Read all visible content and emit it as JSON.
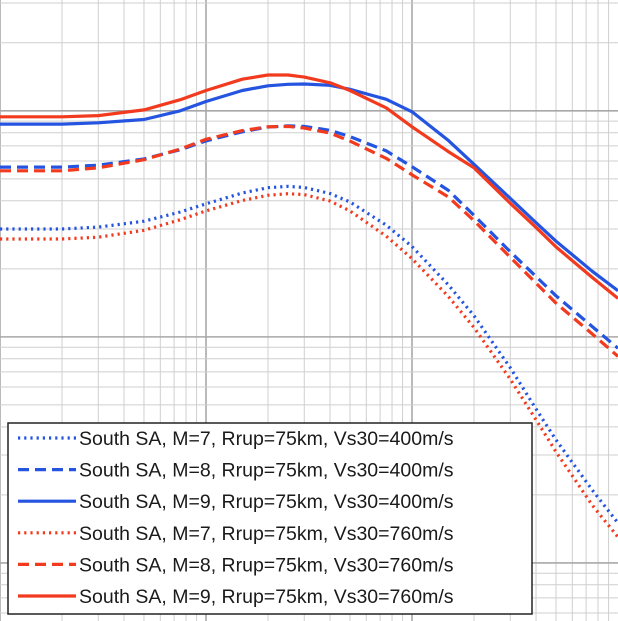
{
  "chart_data": {
    "type": "line",
    "x_scale": "log",
    "y_scale": "log",
    "grid": true,
    "legend_position": "bottom-left",
    "series": [
      {
        "name": "South SA, M=7, Rrup=75km, Vs30=400m/s",
        "color": "#2454e0",
        "style": "dotted",
        "points": [
          [
            0.01,
            0.03
          ],
          [
            0.02,
            0.03
          ],
          [
            0.03,
            0.0306
          ],
          [
            0.05,
            0.0325
          ],
          [
            0.075,
            0.0357
          ],
          [
            0.1,
            0.0388
          ],
          [
            0.15,
            0.0433
          ],
          [
            0.2,
            0.0457
          ],
          [
            0.25,
            0.0463
          ],
          [
            0.3,
            0.0458
          ],
          [
            0.4,
            0.0431
          ],
          [
            0.5,
            0.0395
          ],
          [
            0.75,
            0.0312
          ],
          [
            1.0,
            0.0251
          ],
          [
            1.5,
            0.017
          ],
          [
            2.0,
            0.0124
          ],
          [
            3.0,
            0.0073
          ],
          [
            4.0,
            0.0048
          ],
          [
            5.0,
            0.0035
          ],
          [
            7.5,
            0.0021
          ],
          [
            10.0,
            0.0015
          ]
        ]
      },
      {
        "name": "South SA, M=8, Rrup=75km, Vs30=400m/s",
        "color": "#2454e0",
        "style": "dashed",
        "points": [
          [
            0.01,
            0.0564
          ],
          [
            0.02,
            0.0564
          ],
          [
            0.03,
            0.0575
          ],
          [
            0.05,
            0.0613
          ],
          [
            0.075,
            0.0673
          ],
          [
            0.1,
            0.0736
          ],
          [
            0.15,
            0.0808
          ],
          [
            0.2,
            0.0848
          ],
          [
            0.25,
            0.0858
          ],
          [
            0.3,
            0.0853
          ],
          [
            0.4,
            0.082
          ],
          [
            0.5,
            0.0769
          ],
          [
            0.75,
            0.0665
          ],
          [
            1.0,
            0.0566
          ],
          [
            1.5,
            0.0445
          ],
          [
            2.0,
            0.0345
          ],
          [
            3.0,
            0.0238
          ],
          [
            4.0,
            0.0185
          ],
          [
            5.0,
            0.0152
          ],
          [
            7.5,
            0.0111
          ],
          [
            10.0,
            0.0089
          ]
        ]
      },
      {
        "name": "South SA, M=9, Rrup=75km, Vs30=400m/s",
        "color": "#2454e0",
        "style": "solid",
        "points": [
          [
            0.01,
            0.0874
          ],
          [
            0.02,
            0.0874
          ],
          [
            0.03,
            0.0885
          ],
          [
            0.05,
            0.0916
          ],
          [
            0.075,
            0.1
          ],
          [
            0.1,
            0.11
          ],
          [
            0.15,
            0.123
          ],
          [
            0.2,
            0.129
          ],
          [
            0.25,
            0.131
          ],
          [
            0.3,
            0.1315
          ],
          [
            0.4,
            0.1297
          ],
          [
            0.5,
            0.1245
          ],
          [
            0.75,
            0.1125
          ],
          [
            1.0,
            0.099
          ],
          [
            1.5,
            0.074
          ],
          [
            2.0,
            0.058
          ],
          [
            3.0,
            0.041
          ],
          [
            4.0,
            0.032
          ],
          [
            5.0,
            0.0265
          ],
          [
            7.5,
            0.0195
          ],
          [
            10.0,
            0.016
          ]
        ]
      },
      {
        "name": "South SA, M=7, Rrup=75km, Vs30=760m/s",
        "color": "#f23a1e",
        "style": "dotted",
        "points": [
          [
            0.01,
            0.0271
          ],
          [
            0.02,
            0.0271
          ],
          [
            0.03,
            0.0276
          ],
          [
            0.05,
            0.0296
          ],
          [
            0.075,
            0.033
          ],
          [
            0.1,
            0.0361
          ],
          [
            0.15,
            0.0401
          ],
          [
            0.2,
            0.0423
          ],
          [
            0.25,
            0.043
          ],
          [
            0.3,
            0.0426
          ],
          [
            0.4,
            0.0399
          ],
          [
            0.5,
            0.0361
          ],
          [
            0.75,
            0.0279
          ],
          [
            1.0,
            0.0222
          ],
          [
            1.5,
            0.0151
          ],
          [
            2.0,
            0.011
          ],
          [
            3.0,
            0.0065
          ],
          [
            4.0,
            0.0043
          ],
          [
            5.0,
            0.0031
          ],
          [
            7.5,
            0.0018
          ],
          [
            10.0,
            0.0013
          ]
        ]
      },
      {
        "name": "South SA, M=8, Rrup=75km, Vs30=760m/s",
        "color": "#f23a1e",
        "style": "dashed",
        "points": [
          [
            0.01,
            0.0543
          ],
          [
            0.02,
            0.0543
          ],
          [
            0.03,
            0.056
          ],
          [
            0.05,
            0.0608
          ],
          [
            0.075,
            0.0678
          ],
          [
            0.1,
            0.0748
          ],
          [
            0.15,
            0.0818
          ],
          [
            0.2,
            0.085
          ],
          [
            0.25,
            0.0853
          ],
          [
            0.3,
            0.084
          ],
          [
            0.4,
            0.0797
          ],
          [
            0.5,
            0.0735
          ],
          [
            0.75,
            0.0616
          ],
          [
            1.0,
            0.0521
          ],
          [
            1.5,
            0.0416
          ],
          [
            2.0,
            0.0327
          ],
          [
            3.0,
            0.0225
          ],
          [
            4.0,
            0.0173
          ],
          [
            5.0,
            0.0141
          ],
          [
            7.5,
            0.0103
          ],
          [
            10.0,
            0.0082
          ]
        ]
      },
      {
        "name": "South SA, M=9, Rrup=75km, Vs30=760m/s",
        "color": "#f23a1e",
        "style": "solid",
        "points": [
          [
            0.01,
            0.0941
          ],
          [
            0.02,
            0.0941
          ],
          [
            0.03,
            0.0953
          ],
          [
            0.05,
            0.101
          ],
          [
            0.075,
            0.112
          ],
          [
            0.1,
            0.123
          ],
          [
            0.15,
            0.138
          ],
          [
            0.2,
            0.144
          ],
          [
            0.25,
            0.144
          ],
          [
            0.3,
            0.141
          ],
          [
            0.4,
            0.133
          ],
          [
            0.5,
            0.123
          ],
          [
            0.75,
            0.103
          ],
          [
            1.0,
            0.085
          ],
          [
            1.5,
            0.066
          ],
          [
            2.0,
            0.056
          ],
          [
            3.0,
            0.039
          ],
          [
            4.0,
            0.0305
          ],
          [
            5.0,
            0.025
          ],
          [
            7.5,
            0.0183
          ],
          [
            10.0,
            0.0148
          ]
        ]
      }
    ]
  }
}
